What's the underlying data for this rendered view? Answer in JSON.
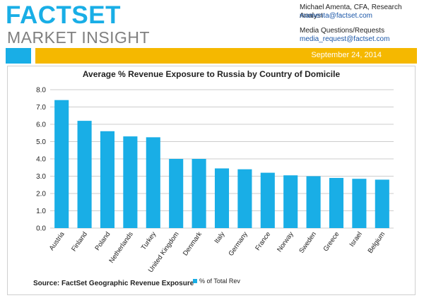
{
  "header": {
    "logo_main": "FACTSET",
    "logo_sub": "MARKET INSIGHT",
    "analyst": "Michael Amenta, CFA, Research Analyst",
    "analyst_email": "mamenta@factset.com",
    "media_label": "Media Questions/Requests",
    "media_email": "media_request@factset.com",
    "date": "September 24, 2014"
  },
  "colors": {
    "brand_blue": "#19aee6",
    "gold": "#f5b800",
    "bar": "#19aee6"
  },
  "chart_data": {
    "type": "bar",
    "title": "Average % Revenue Exposure to Russia by Country of Domicile",
    "source": "Source: FactSet Geographic Revenue Exposure",
    "categories": [
      "Austria",
      "Finland",
      "Poland",
      "Netherlands",
      "Turkey",
      "United Kingdom",
      "Denmark",
      "Italy",
      "Germany",
      "France",
      "Norway",
      "Sweden",
      "Greece",
      "Israel",
      "Belgium"
    ],
    "series": [
      {
        "name": "% of Total Rev",
        "values": [
          7.4,
          6.2,
          5.6,
          5.3,
          5.25,
          4.0,
          4.0,
          3.45,
          3.4,
          3.2,
          3.05,
          3.0,
          2.9,
          2.85,
          2.8
        ]
      }
    ],
    "yticks": [
      "8.0",
      "7.0",
      "6.0",
      "5.0",
      "4.0",
      "3.0",
      "2.0",
      "1.0",
      "0.0"
    ],
    "ylim": [
      0,
      8
    ],
    "grid": true,
    "legend_position": "bottom"
  }
}
